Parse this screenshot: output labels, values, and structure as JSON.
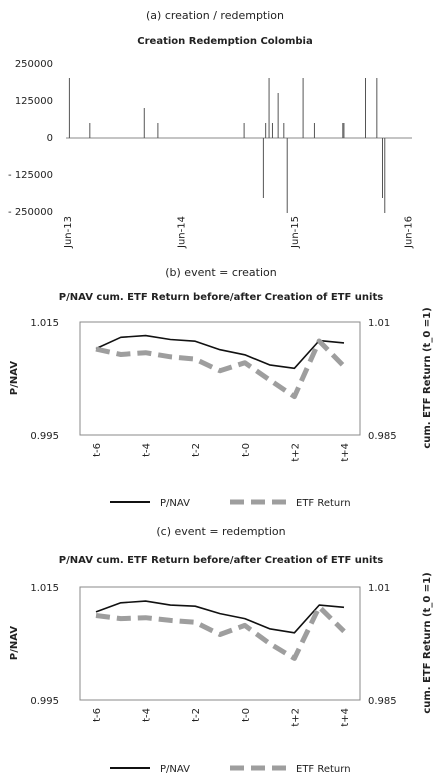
{
  "chart_data": [
    {
      "id": "a",
      "type": "bar",
      "caption": "(a) creation / redemption",
      "title": "Creation Redemption Colombia",
      "yticks": [
        "250000",
        "125000",
        "0",
        "- 125000",
        "- 250000"
      ],
      "ylim": [
        -250000,
        250000
      ],
      "xtick_labels": [
        "Jun-13",
        "Jun-14",
        "Jun-15",
        "Jun-16"
      ],
      "xlim": [
        2013.45,
        2016.5
      ],
      "x_tick_positions": [
        2013.46,
        2014.46,
        2015.46,
        2016.46
      ],
      "bars": [
        {
          "t": 2013.48,
          "v": 200000
        },
        {
          "t": 2013.66,
          "v": 50000
        },
        {
          "t": 2014.14,
          "v": 100000
        },
        {
          "t": 2014.26,
          "v": 50000
        },
        {
          "t": 2015.02,
          "v": 50000
        },
        {
          "t": 2015.19,
          "v": -200000
        },
        {
          "t": 2015.21,
          "v": 50000
        },
        {
          "t": 2015.24,
          "v": 200000
        },
        {
          "t": 2015.27,
          "v": 50000
        },
        {
          "t": 2015.32,
          "v": 150000
        },
        {
          "t": 2015.37,
          "v": 50000
        },
        {
          "t": 2015.4,
          "v": -250000
        },
        {
          "t": 2015.54,
          "v": 200000
        },
        {
          "t": 2015.64,
          "v": 50000
        },
        {
          "t": 2015.89,
          "v": 50000
        },
        {
          "t": 2015.9,
          "v": 50000
        },
        {
          "t": 2016.09,
          "v": 200000
        },
        {
          "t": 2016.19,
          "v": 200000
        },
        {
          "t": 2016.24,
          "v": -200000
        },
        {
          "t": 2016.26,
          "v": -250000
        }
      ],
      "grid": false
    },
    {
      "id": "b",
      "type": "line",
      "caption": "(b) event = creation",
      "title": "P/NAV cum. ETF Return before/after Creation of ETF units",
      "x": [
        "t-6",
        "t-5",
        "t-4",
        "t-3",
        "t-2",
        "t-1",
        "t-0",
        "t+1",
        "t+2",
        "t+3",
        "t+4"
      ],
      "xtick_labels": [
        "t-6",
        "t-4",
        "t-2",
        "t-0",
        "t+2",
        "t+4"
      ],
      "ylabel_left": "P/NAV",
      "ylabel_right": "cum. ETF Return (t_0 =1)",
      "yticks_left": [
        "1.015",
        "0.995"
      ],
      "yticks_right": [
        "1.01",
        "0.985"
      ],
      "ylim_left": [
        0.995,
        1.015
      ],
      "ylim_right": [
        0.985,
        1.01
      ],
      "series": [
        {
          "name": "P/NAV",
          "axis": "left",
          "color": "#111111",
          "values": [
            1.0103,
            1.0123,
            1.0126,
            1.0119,
            1.0116,
            1.0101,
            1.0092,
            1.0074,
            1.0068,
            1.0117,
            1.0113
          ]
        },
        {
          "name": "ETF Return",
          "axis": "right",
          "color": "#9e9e9e",
          "values": [
            1.004,
            1.0028,
            1.0032,
            1.0023,
            1.0018,
            0.9992,
            1.001,
            0.9972,
            0.9935,
            1.0058,
            1.0002
          ]
        }
      ],
      "legend": "bottom",
      "grid": false
    },
    {
      "id": "c",
      "type": "line",
      "caption": "(c) event = redemption",
      "title": "P/NAV cum. ETF Return before/after Creation of ETF units",
      "x": [
        "t-6",
        "t-5",
        "t-4",
        "t-3",
        "t-2",
        "t-1",
        "t-0",
        "t+1",
        "t+2",
        "t+3",
        "t+4"
      ],
      "xtick_labels": [
        "t-6",
        "t-4",
        "t-2",
        "t-0",
        "t+2",
        "t+4"
      ],
      "ylabel_left": "P/NAV",
      "ylabel_right": "cum. ETF Return (t_0 =1)",
      "yticks_left": [
        "1.015",
        "0.995"
      ],
      "yticks_right": [
        "1.01",
        "0.985"
      ],
      "ylim_left": [
        0.995,
        1.015
      ],
      "ylim_right": [
        0.985,
        1.01
      ],
      "series": [
        {
          "name": "P/NAV",
          "axis": "left",
          "color": "#111111",
          "values": [
            1.0106,
            1.0122,
            1.0125,
            1.0118,
            1.0116,
            1.0103,
            1.0094,
            1.0076,
            1.0069,
            1.0118,
            1.0114
          ]
        },
        {
          "name": "ETF Return",
          "axis": "right",
          "color": "#9e9e9e",
          "values": [
            1.0037,
            1.003,
            1.0032,
            1.0026,
            1.0022,
            0.9995,
            1.0015,
            0.9975,
            0.9942,
            1.0056,
            1.0002
          ]
        }
      ],
      "legend": "bottom",
      "grid": false
    }
  ]
}
